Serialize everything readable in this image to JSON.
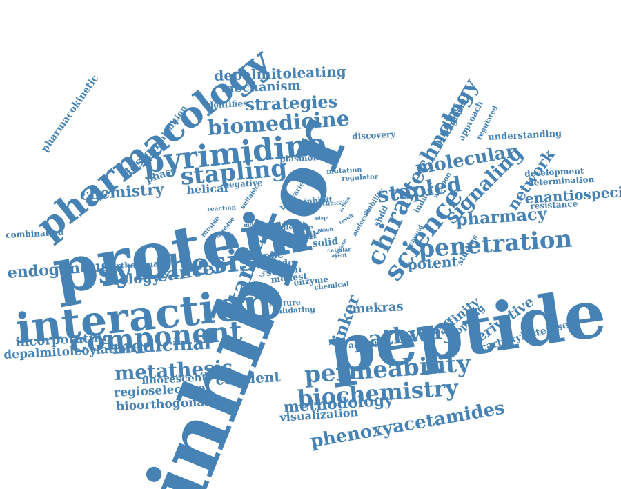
{
  "cloud": {
    "color": "#4682b4",
    "words": [
      {
        "text": "inhibitor"
      },
      {
        "text": "peptide"
      },
      {
        "text": "protein"
      },
      {
        "text": "interaction"
      },
      {
        "text": "pharmacology"
      },
      {
        "text": "pyrimidine"
      },
      {
        "text": "synthesis"
      },
      {
        "text": "component"
      },
      {
        "text": "permeability"
      },
      {
        "text": "biochemistry"
      },
      {
        "text": "penetration"
      },
      {
        "text": "pathway"
      },
      {
        "text": "science"
      },
      {
        "text": "stapling"
      },
      {
        "text": "stapled"
      },
      {
        "text": "chiral"
      },
      {
        "text": "biomedicine"
      },
      {
        "text": "molecular"
      },
      {
        "text": "technology"
      },
      {
        "text": "target"
      },
      {
        "text": "signaling"
      },
      {
        "text": "pharmacy"
      },
      {
        "text": "phenoxyacetamides"
      },
      {
        "text": "chemistry"
      },
      {
        "text": "metathesis"
      },
      {
        "text": "medicinal"
      },
      {
        "text": "linker"
      },
      {
        "text": "cancer"
      },
      {
        "text": "endogenous"
      },
      {
        "text": "strategies"
      },
      {
        "text": "depalmitoleating"
      },
      {
        "text": "mechanism"
      },
      {
        "text": "methodology"
      },
      {
        "text": "enantiospecific"
      },
      {
        "text": "covalent"
      },
      {
        "text": "network"
      },
      {
        "text": "potent"
      },
      {
        "text": "biology"
      },
      {
        "text": "incorporating"
      },
      {
        "text": "depalmitoleoylation"
      },
      {
        "text": "regioselective"
      },
      {
        "text": "bioorthogonal"
      },
      {
        "text": "fluorescent"
      },
      {
        "text": "mekras"
      },
      {
        "text": "visualization"
      },
      {
        "text": "derivative"
      },
      {
        "text": "carboxylesterase"
      },
      {
        "text": "affinity"
      },
      {
        "text": "hopping"
      },
      {
        "text": "pharmacokinetic"
      },
      {
        "text": "design"
      },
      {
        "text": "phase"
      },
      {
        "text": "inhibition"
      },
      {
        "text": "identifies"
      },
      {
        "text": "helical"
      },
      {
        "text": "negative"
      },
      {
        "text": "plasmon"
      },
      {
        "text": "discovery"
      },
      {
        "text": "fragment"
      },
      {
        "text": "approach"
      },
      {
        "text": "regulated"
      },
      {
        "text": "binding"
      },
      {
        "text": "understanding"
      },
      {
        "text": "development"
      },
      {
        "text": "determination"
      },
      {
        "text": "resistance"
      },
      {
        "text": "combination"
      },
      {
        "text": "orthogonal"
      },
      {
        "text": "probe"
      },
      {
        "text": "amide"
      },
      {
        "text": "screen"
      },
      {
        "text": "modest"
      },
      {
        "text": "enzyme"
      },
      {
        "text": "structure"
      },
      {
        "text": "validating"
      },
      {
        "text": "chemical"
      },
      {
        "text": "activity"
      },
      {
        "text": "studies"
      },
      {
        "text": "mutation"
      },
      {
        "text": "regulator"
      },
      {
        "text": "variety"
      },
      {
        "text": "braf"
      },
      {
        "text": "inhibit"
      },
      {
        "text": "reaction"
      },
      {
        "text": "mouse"
      },
      {
        "text": "disease"
      },
      {
        "text": "suitable"
      },
      {
        "text": "model"
      },
      {
        "text": "single"
      },
      {
        "text": "solid"
      },
      {
        "text": "cell"
      },
      {
        "text": "life"
      },
      {
        "text": "clinical"
      },
      {
        "text": "stability"
      },
      {
        "text": "sbdd"
      },
      {
        "text": "inducer"
      },
      {
        "text": "weapon"
      },
      {
        "text": "demand"
      },
      {
        "text": "kinase"
      },
      {
        "text": "cellular"
      },
      {
        "text": "agent"
      },
      {
        "text": "molecule"
      },
      {
        "text": "adapt"
      },
      {
        "text": "result"
      },
      {
        "text": "facet"
      },
      {
        "text": "better"
      },
      {
        "text": "involved"
      },
      {
        "text": "action"
      },
      {
        "text": "genetic"
      },
      {
        "text": "result"
      }
    ]
  }
}
